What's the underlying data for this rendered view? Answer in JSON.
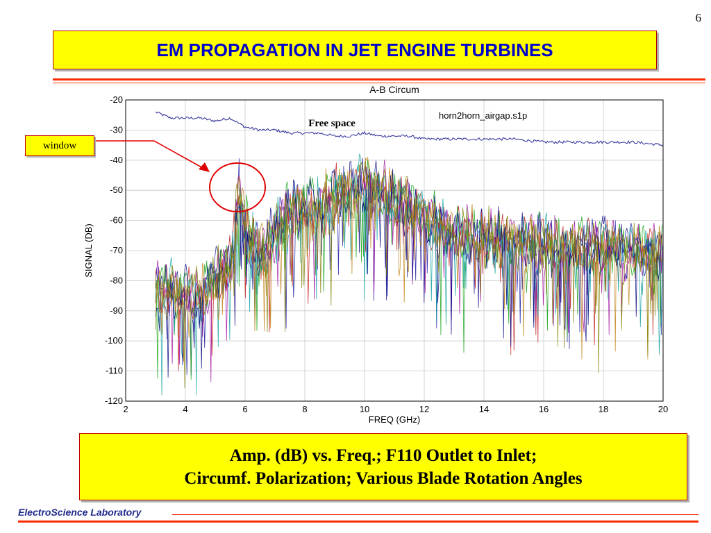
{
  "page": {
    "number": "6"
  },
  "slide_title": "EM PROPAGATION IN JET ENGINE TURBINES",
  "callouts": {
    "window": "window"
  },
  "caption": {
    "line1": "Amp. (dB) vs. Freq.;  F110 Outlet to Inlet;",
    "line2": "Circumf. Polarization; Various Blade Rotation Angles"
  },
  "footer": {
    "lab": "ElectroScience Laboratory"
  },
  "colors": {
    "title_fill": "#ffff00",
    "title_text": "#0000cc",
    "rule": "#ff2a00",
    "callout_circle": "#e00000",
    "free_space_trace": "#3a3aa0",
    "trace_palette": [
      "#1a1aa0",
      "#c01818",
      "#12a012",
      "#a010a0",
      "#10a0a0",
      "#000080",
      "#c08010",
      "#808000"
    ]
  },
  "chart_data": {
    "type": "line",
    "title": "A-B Circum",
    "xlabel": "FREQ (GHz)",
    "ylabel": "SIGNAL (DB)",
    "xlim": [
      2,
      20
    ],
    "ylim": [
      -120,
      -20
    ],
    "xticks": [
      "2",
      "4",
      "6",
      "8",
      "10",
      "12",
      "14",
      "16",
      "18",
      "20"
    ],
    "yticks": [
      "-20",
      "-30",
      "-40",
      "-50",
      "-60",
      "-70",
      "-80",
      "-90",
      "-100",
      "-110",
      "-120"
    ],
    "grid": true,
    "legend_text": "horn2horn_airgap.s1p",
    "annotations": [
      "Free space"
    ],
    "series": [
      {
        "x": [
          3.0,
          3.5,
          4.0,
          4.5,
          5.0,
          5.5,
          6.0,
          6.5,
          7.0,
          7.5,
          8.0,
          8.5,
          9.0,
          9.5,
          10.0,
          10.5,
          11.0,
          11.5,
          12.0,
          13.0,
          14.0,
          15.0,
          16.0,
          17.0,
          18.0,
          19.0,
          20.0
        ],
        "y": [
          -24,
          -26,
          -26,
          -26,
          -27,
          -26,
          -29,
          -30,
          -30,
          -31,
          -31,
          -31,
          -32,
          -32,
          -31,
          -32,
          -32,
          -32,
          -33,
          -33,
          -33,
          -33,
          -34,
          -34,
          -34,
          -34,
          -35
        ]
      }
    ],
    "multi_trace_envelope": {
      "x": [
        3.0,
        3.5,
        4.0,
        4.5,
        5.0,
        5.5,
        5.8,
        6.0,
        6.5,
        7.0,
        7.5,
        8.0,
        8.5,
        9.0,
        9.5,
        10.0,
        10.5,
        11.0,
        11.5,
        12.0,
        13.0,
        14.0,
        15.0,
        16.0,
        17.0,
        18.0,
        19.0,
        20.0
      ],
      "y": [
        -80,
        -79,
        -80,
        -82,
        -74,
        -71,
        -47,
        -58,
        -68,
        -60,
        -53,
        -51,
        -52,
        -48,
        -46,
        -44,
        -46,
        -49,
        -51,
        -55,
        -60,
        -62,
        -63,
        -64,
        -65,
        -65,
        -66,
        -67
      ]
    }
  }
}
